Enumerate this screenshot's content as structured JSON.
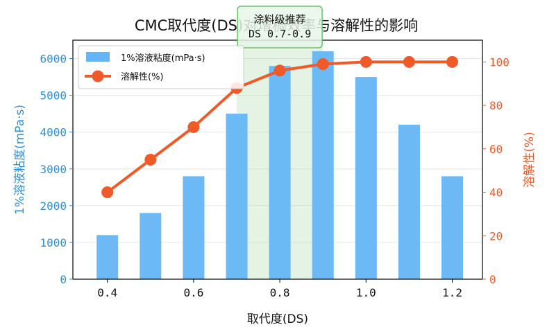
{
  "chart_data": {
    "type": "bar+line",
    "title": "CMC取代度(DS)对增稠效率与溶解性的影响",
    "xlabel": "取代度(DS)",
    "x": [
      0.4,
      0.5,
      0.6,
      0.7,
      0.8,
      0.9,
      1.0,
      1.1,
      1.2
    ],
    "xticks": [
      "0.4",
      "0.6",
      "0.8",
      "1.0",
      "1.2"
    ],
    "xlim": [
      0.32,
      1.27
    ],
    "series": [
      {
        "name": "1%溶液粘度(mPa·s)",
        "type": "bar",
        "axis": "left",
        "color": "#64b5f6",
        "values": [
          1200,
          1800,
          2800,
          4500,
          5800,
          6200,
          5500,
          4200,
          2800
        ]
      },
      {
        "name": "溶解性(%)",
        "type": "line",
        "axis": "right",
        "color": "#f05a28",
        "values": [
          40,
          55,
          70,
          88,
          96,
          99,
          100,
          100,
          100
        ]
      }
    ],
    "y_left": {
      "label": "1%溶液粘度(mPa·s)",
      "range": [
        0,
        6500
      ],
      "ticks": [
        "0",
        "1000",
        "2000",
        "3000",
        "4000",
        "5000",
        "6000"
      ],
      "color": "#2e8fd8"
    },
    "y_right": {
      "label": "溶解性(%)",
      "range": [
        0,
        110
      ],
      "ticks": [
        "0",
        "20",
        "40",
        "60",
        "80",
        "100"
      ],
      "color": "#f05a28"
    },
    "highlight": {
      "x_range": [
        0.7,
        0.9
      ],
      "color": "#a5d6a7",
      "label_line1": "涂料级推荐",
      "label_line2": "DS 0.7-0.9"
    },
    "legend": "top-left",
    "grid": "horizontal"
  }
}
